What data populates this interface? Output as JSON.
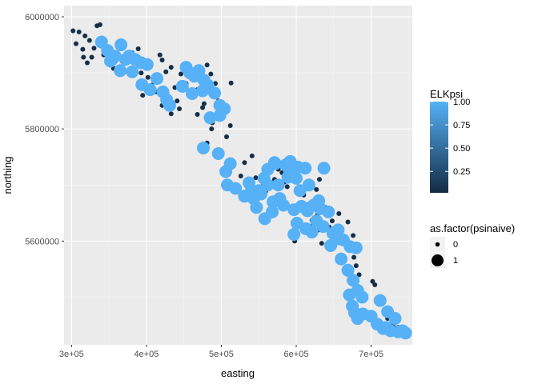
{
  "chart_data": {
    "type": "scatter",
    "xlabel": "easting",
    "ylabel": "northing",
    "xlim": [
      290000,
      755000
    ],
    "ylim": [
      5415000,
      6020000
    ],
    "x_ticks": [
      300000,
      400000,
      500000,
      600000,
      700000
    ],
    "x_tick_labels": [
      "3e+05",
      "4e+05",
      "5e+05",
      "6e+05",
      "7e+05"
    ],
    "y_ticks": [
      5600000,
      5800000,
      6000000
    ],
    "y_tick_labels": [
      "5600000",
      "5800000",
      "6000000"
    ],
    "grid": true,
    "legend_placement": "right",
    "color_legend": {
      "title": "ELKpsi",
      "ticks": [
        0.25,
        0.5,
        0.75,
        1.0
      ],
      "tick_labels": [
        "0.25",
        "0.50",
        "0.75",
        "1.00"
      ],
      "range": [
        0.02,
        1.0
      ],
      "low_color": "#132B43",
      "high_color": "#56B1F7"
    },
    "size_legend": {
      "title": "as.factor(psinaive)",
      "labels": [
        "0",
        "1"
      ]
    },
    "series": [
      {
        "psinaive": 0,
        "elkpsi": 0.05,
        "x": [
          302000,
          310000,
          318000,
          324000,
          334000,
          338000,
          306000,
          315000,
          330000,
          343000,
          316000,
          321000,
          327000,
          358000,
          356000,
          371000,
          381000,
          379000,
          389000,
          383000,
          393000,
          418000,
          421000,
          402000,
          395000,
          407000,
          413000,
          426000,
          433000,
          438000,
          447000,
          453000,
          460000,
          446000,
          481000,
          492000,
          478000,
          468000,
          486000,
          441000,
          444000,
          433000,
          421000,
          426000,
          513000,
          496000,
          477000,
          475000,
          468000,
          488000,
          487000,
          512000,
          507000,
          481000,
          541000,
          561000,
          576000,
          584000,
          593000,
          555000,
          571000,
          559000,
          546000,
          588000,
          606000,
          617000,
          625000,
          627000,
          631000,
          628000,
          598000,
          612000,
          622000,
          639000,
          610000,
          617000,
          621000,
          648000,
          657000,
          669000,
          676000,
          630000,
          634000,
          644000,
          665000,
          671000,
          677000,
          680000,
          684000,
          702000,
          705000,
          712000,
          718000,
          722000,
          729000,
          731000,
          736000,
          739000,
          531000,
          526000,
          537000,
          569000,
          559000,
          581000,
          586000,
          648000,
          584000
        ],
        "y": [
          5975000,
          5973000,
          5966000,
          5958000,
          5984000,
          5986000,
          5952000,
          5942000,
          5944000,
          5932000,
          5928000,
          5918000,
          5928000,
          5920000,
          5908000,
          5928000,
          5936000,
          5904000,
          5943000,
          5922000,
          5900000,
          5932000,
          5923000,
          5892000,
          5860000,
          5878000,
          5866000,
          5902000,
          5910000,
          5874000,
          5872000,
          5881000,
          5890000,
          5898000,
          5914000,
          5881000,
          5878000,
          5870000,
          5898000,
          5850000,
          5836000,
          5827000,
          5842000,
          5857000,
          5882000,
          5850000,
          5845000,
          5838000,
          5826000,
          5811000,
          5800000,
          5806000,
          5786000,
          5775000,
          5752000,
          5734000,
          5728000,
          5740000,
          5720000,
          5698000,
          5710000,
          5688000,
          5713000,
          5697000,
          5664000,
          5652000,
          5668000,
          5692000,
          5710000,
          5646000,
          5600000,
          5624000,
          5628000,
          5660000,
          5682000,
          5666000,
          5637000,
          5636000,
          5649000,
          5634000,
          5610000,
          5620000,
          5596000,
          5625000,
          5608000,
          5590000,
          5571000,
          5556000,
          5540000,
          5528000,
          5522000,
          5490000,
          5475000,
          5462000,
          5454000,
          5446000,
          5446000,
          5441000,
          5740000,
          5716000,
          5702000,
          5674000,
          5688000,
          5722000,
          5718000,
          5650000,
          5705000
        ]
      },
      {
        "psinaive": 1,
        "elkpsi": 1.0,
        "x": [
          340000,
          348000,
          358000,
          366000,
          372000,
          352000,
          377000,
          385000,
          393000,
          401000,
          365000,
          381000,
          414000,
          394000,
          405000,
          422000,
          427000,
          431000,
          453000,
          458000,
          464000,
          470000,
          477000,
          482000,
          448000,
          461000,
          475000,
          491000,
          498000,
          504000,
          498000,
          485000,
          476000,
          496000,
          512000,
          506000,
          508000,
          519000,
          531000,
          543000,
          550000,
          537000,
          557000,
          562000,
          572000,
          586000,
          591000,
          602000,
          612000,
          600000,
          589000,
          576000,
          562000,
          553000,
          569000,
          578000,
          583000,
          597000,
          607000,
          615000,
          623000,
          632000,
          643000,
          627000,
          621000,
          636000,
          656000,
          663000,
          672000,
          680000,
          657000,
          649000,
          646000,
          660000,
          669000,
          676000,
          682000,
          688000,
          671000,
          675000,
          678000,
          682000,
          689000,
          700000,
          708000,
          716000,
          726000,
          736000,
          742000,
          746000,
          720000,
          732000,
          722000,
          712000,
          558000,
          547000,
          568000,
          540000,
          571000,
          592000,
          605000,
          617000,
          630000,
          601000,
          597000,
          613000,
          637000
        ],
        "y": [
          5955000,
          5940000,
          5930000,
          5950000,
          5924000,
          5921000,
          5930000,
          5924000,
          5918000,
          5915000,
          5904000,
          5902000,
          5890000,
          5879000,
          5870000,
          5866000,
          5852000,
          5842000,
          5910000,
          5900000,
          5894000,
          5904000,
          5887000,
          5878000,
          5876000,
          5863000,
          5868000,
          5864000,
          5842000,
          5836000,
          5824000,
          5820000,
          5766000,
          5756000,
          5738000,
          5724000,
          5700000,
          5694000,
          5680000,
          5676000,
          5690000,
          5704000,
          5712000,
          5728000,
          5738000,
          5736000,
          5726000,
          5732000,
          5730000,
          5712000,
          5714000,
          5700000,
          5700000,
          5684000,
          5670000,
          5676000,
          5664000,
          5656000,
          5662000,
          5654000,
          5664000,
          5658000,
          5652000,
          5636000,
          5616000,
          5626000,
          5620000,
          5602000,
          5590000,
          5588000,
          5604000,
          5614000,
          5592000,
          5568000,
          5548000,
          5530000,
          5512000,
          5500000,
          5504000,
          5484000,
          5472000,
          5462000,
          5470000,
          5466000,
          5452000,
          5444000,
          5440000,
          5438000,
          5440000,
          5436000,
          5446000,
          5462000,
          5474000,
          5494000,
          5640000,
          5660000,
          5652000,
          5690000,
          5740000,
          5742000,
          5690000,
          5700000,
          5672000,
          5632000,
          5612000,
          5622000,
          5730000
        ]
      }
    ]
  }
}
